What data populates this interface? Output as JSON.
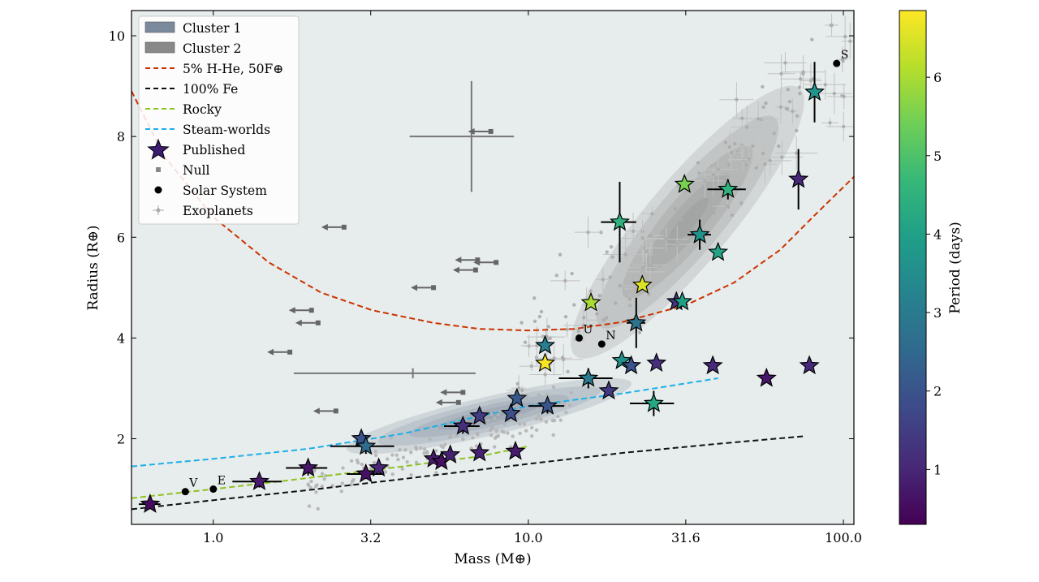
{
  "chart_data": {
    "type": "scatter",
    "xlabel": "Mass (M⊕)",
    "ylabel": "Radius (R⊕)",
    "x_scale": "log",
    "xlim": [
      0.55,
      108
    ],
    "ylim": [
      0.3,
      10.5
    ],
    "xticks": [
      {
        "v": 1.0,
        "label": "1.0"
      },
      {
        "v": 3.16,
        "label": "3.2"
      },
      {
        "v": 10.0,
        "label": "10.0"
      },
      {
        "v": 31.6,
        "label": "31.6"
      },
      {
        "v": 100.0,
        "label": "100.0"
      }
    ],
    "yticks": [
      2,
      4,
      6,
      8,
      10
    ],
    "grid": false,
    "legend_position": "top-left",
    "background": "#e7ecec",
    "colorbar": {
      "label": "Period (days)",
      "min": 0.3,
      "max": 6.85,
      "ticks": [
        1,
        2,
        3,
        4,
        5,
        6
      ],
      "colormap": "viridis",
      "stops": [
        "#440154",
        "#482878",
        "#3e4989",
        "#31688e",
        "#26828e",
        "#1f9e89",
        "#35b779",
        "#6ece58",
        "#b5de2b",
        "#fde725"
      ]
    },
    "legend": [
      {
        "label": "Cluster 1",
        "kind": "patch",
        "color": "#7a8a9c"
      },
      {
        "label": "Cluster 2",
        "kind": "patch",
        "color": "#888888"
      },
      {
        "label": "5% H-He, 50F⊕",
        "kind": "dash",
        "color": "#cc3300"
      },
      {
        "label": "100% Fe",
        "kind": "dash",
        "color": "#111111"
      },
      {
        "label": "Rocky",
        "kind": "dash",
        "color": "#8ec21e"
      },
      {
        "label": "Steam-worlds",
        "kind": "dash",
        "color": "#1ab0e8"
      },
      {
        "label": "Published",
        "kind": "star",
        "color": "#3b1c6e"
      },
      {
        "label": "Null",
        "kind": "square",
        "color": "#888888"
      },
      {
        "label": "Solar System",
        "kind": "dot",
        "color": "#000000"
      },
      {
        "label": "Exoplanets",
        "kind": "errdot",
        "color": "#aaaaaa"
      }
    ],
    "curves": [
      {
        "name": "5% H-He, 50F⊕",
        "color": "#cc3300",
        "points": [
          [
            0.55,
            8.9
          ],
          [
            0.7,
            7.6
          ],
          [
            1.0,
            6.4
          ],
          [
            1.5,
            5.5
          ],
          [
            2.2,
            4.9
          ],
          [
            3.2,
            4.55
          ],
          [
            5.0,
            4.3
          ],
          [
            7.0,
            4.18
          ],
          [
            10.0,
            4.15
          ],
          [
            14.0,
            4.18
          ],
          [
            20.0,
            4.32
          ],
          [
            31.6,
            4.65
          ],
          [
            45.0,
            5.1
          ],
          [
            63.0,
            5.75
          ],
          [
            80.0,
            6.4
          ],
          [
            108.0,
            7.2
          ]
        ]
      },
      {
        "name": "100% Fe",
        "color": "#111111",
        "points": [
          [
            0.55,
            0.6
          ],
          [
            1.0,
            0.78
          ],
          [
            2.0,
            0.98
          ],
          [
            4.0,
            1.2
          ],
          [
            10.0,
            1.5
          ],
          [
            20.0,
            1.72
          ],
          [
            40.0,
            1.9
          ],
          [
            75.0,
            2.05
          ]
        ]
      },
      {
        "name": "Rocky",
        "color": "#8ec21e",
        "points": [
          [
            0.55,
            0.82
          ],
          [
            1.0,
            1.0
          ],
          [
            2.0,
            1.22
          ],
          [
            4.0,
            1.45
          ],
          [
            7.0,
            1.65
          ],
          [
            10.0,
            1.85
          ]
        ]
      },
      {
        "name": "Steam-worlds",
        "color": "#1ab0e8",
        "points": [
          [
            0.55,
            1.45
          ],
          [
            1.0,
            1.6
          ],
          [
            2.0,
            1.8
          ],
          [
            4.0,
            2.1
          ],
          [
            7.0,
            2.45
          ],
          [
            10.0,
            2.65
          ],
          [
            20.0,
            2.9
          ],
          [
            40.0,
            3.2
          ]
        ]
      }
    ],
    "solar_system": [
      {
        "x": 0.815,
        "y": 0.95,
        "label": "V"
      },
      {
        "x": 1.0,
        "y": 1.0,
        "label": "E"
      },
      {
        "x": 14.5,
        "y": 4.0,
        "label": "U"
      },
      {
        "x": 17.1,
        "y": 3.88,
        "label": "N"
      },
      {
        "x": 95.2,
        "y": 9.45,
        "label": "S"
      }
    ],
    "published": [
      {
        "x": 0.63,
        "y": 0.7,
        "period": 0.5
      },
      {
        "x": 1.4,
        "y": 1.15,
        "period": 0.8
      },
      {
        "x": 2.0,
        "y": 1.42,
        "period": 0.7
      },
      {
        "x": 3.05,
        "y": 1.3,
        "period": 0.6
      },
      {
        "x": 3.35,
        "y": 1.42,
        "period": 1.0
      },
      {
        "x": 5.0,
        "y": 1.6,
        "period": 0.8
      },
      {
        "x": 5.3,
        "y": 1.55,
        "period": 0.6
      },
      {
        "x": 5.65,
        "y": 1.68,
        "period": 0.9
      },
      {
        "x": 7.0,
        "y": 1.72,
        "period": 0.9
      },
      {
        "x": 9.1,
        "y": 1.75,
        "period": 0.8
      },
      {
        "x": 2.95,
        "y": 2.0,
        "period": 2.0
      },
      {
        "x": 3.05,
        "y": 1.85,
        "period": 2.6
      },
      {
        "x": 6.2,
        "y": 2.25,
        "period": 1.2
      },
      {
        "x": 7.0,
        "y": 2.45,
        "period": 1.5
      },
      {
        "x": 8.8,
        "y": 2.5,
        "period": 1.9
      },
      {
        "x": 9.2,
        "y": 2.8,
        "period": 2.1
      },
      {
        "x": 11.5,
        "y": 2.65,
        "period": 2.0
      },
      {
        "x": 11.3,
        "y": 3.85,
        "period": 3.1
      },
      {
        "x": 11.3,
        "y": 3.5,
        "period": 6.8
      },
      {
        "x": 15.5,
        "y": 3.2,
        "period": 3.0
      },
      {
        "x": 18.0,
        "y": 2.95,
        "period": 1.4
      },
      {
        "x": 19.8,
        "y": 3.55,
        "period": 3.6
      },
      {
        "x": 21.2,
        "y": 3.45,
        "period": 2.0
      },
      {
        "x": 22.0,
        "y": 4.3,
        "period": 2.8
      },
      {
        "x": 23.0,
        "y": 5.05,
        "period": 6.5
      },
      {
        "x": 25.5,
        "y": 3.5,
        "period": 1.2
      },
      {
        "x": 25.0,
        "y": 2.7,
        "period": 4.2
      },
      {
        "x": 15.8,
        "y": 4.7,
        "period": 6.0
      },
      {
        "x": 19.5,
        "y": 6.3,
        "period": 4.5
      },
      {
        "x": 29.5,
        "y": 4.72,
        "period": 1.3
      },
      {
        "x": 30.8,
        "y": 4.72,
        "period": 4.0
      },
      {
        "x": 31.3,
        "y": 7.05,
        "period": 5.5
      },
      {
        "x": 35.0,
        "y": 6.05,
        "period": 3.6
      },
      {
        "x": 40.0,
        "y": 5.7,
        "period": 4.1
      },
      {
        "x": 43.0,
        "y": 6.95,
        "period": 4.5
      },
      {
        "x": 38.5,
        "y": 3.45,
        "period": 1.1
      },
      {
        "x": 57.0,
        "y": 3.2,
        "period": 0.7
      },
      {
        "x": 72.0,
        "y": 7.15,
        "period": 1.0
      },
      {
        "x": 78.0,
        "y": 3.45,
        "period": 1.1
      },
      {
        "x": 81.0,
        "y": 8.88,
        "period": 3.7
      }
    ],
    "published_errorbars": [
      {
        "x": 0.63,
        "y": 0.7,
        "xerr": 0.05,
        "yerr": 0.1
      },
      {
        "x": 1.4,
        "y": 1.15,
        "xerr": 0.25,
        "yerr": 0.12
      },
      {
        "x": 2.0,
        "y": 1.42,
        "xerr": 0.3,
        "yerr": 0.15
      },
      {
        "x": 3.05,
        "y": 1.3,
        "xerr": 0.4,
        "yerr": 0.1
      },
      {
        "x": 3.05,
        "y": 1.85,
        "xerr": 0.7,
        "yerr": 0.15
      },
      {
        "x": 6.2,
        "y": 2.25,
        "xerr": 0.8,
        "yerr": 0.15
      },
      {
        "x": 11.5,
        "y": 2.65,
        "xerr": 1.5,
        "yerr": 0.15
      },
      {
        "x": 15.5,
        "y": 3.2,
        "xerr": 3.0,
        "yerr": 0.2
      },
      {
        "x": 19.5,
        "y": 6.3,
        "xerr": 2.5,
        "yerr": 0.8
      },
      {
        "x": 22.0,
        "y": 4.3,
        "xerr": 1.5,
        "yerr": 0.5
      },
      {
        "x": 25.0,
        "y": 2.7,
        "xerr": 4.0,
        "yerr": 0.25
      },
      {
        "x": 35.0,
        "y": 6.05,
        "xerr": 3.0,
        "yerr": 0.3
      },
      {
        "x": 43.0,
        "y": 6.95,
        "xerr": 6.0,
        "yerr": 0.2
      },
      {
        "x": 72.0,
        "y": 7.15,
        "xerr": 3.0,
        "yerr": 0.6
      },
      {
        "x": 81.0,
        "y": 8.88,
        "xerr": 3.0,
        "yerr": 0.6
      }
    ],
    "null_results": [
      {
        "x": 7.6,
        "y": 8.1
      },
      {
        "x": 2.6,
        "y": 6.2
      },
      {
        "x": 6.9,
        "y": 5.55
      },
      {
        "x": 7.9,
        "y": 5.5
      },
      {
        "x": 6.8,
        "y": 5.35
      },
      {
        "x": 5.0,
        "y": 5.0
      },
      {
        "x": 2.05,
        "y": 4.55
      },
      {
        "x": 2.15,
        "y": 4.3
      },
      {
        "x": 1.75,
        "y": 3.72
      },
      {
        "x": 6.2,
        "y": 2.92
      },
      {
        "x": 6.0,
        "y": 2.72
      },
      {
        "x": 2.45,
        "y": 2.55
      }
    ],
    "null_errorbars": [
      {
        "x": 6.6,
        "y": 8.0,
        "xerr": 2.4,
        "yerr": 1.1
      },
      {
        "x": 4.3,
        "y": 3.3,
        "xerr": 2.5,
        "yerr": 0.1
      }
    ],
    "clusters": [
      {
        "name": "Cluster 1",
        "color": "#7a8a9c",
        "center": [
          7.5,
          2.45
        ],
        "angle": -13,
        "rx": 180,
        "ry": 24
      },
      {
        "name": "Cluster 2",
        "color": "#888888",
        "center": [
          32.0,
          6.3
        ],
        "angle": -50,
        "rx": 215,
        "ry": 52
      }
    ]
  }
}
